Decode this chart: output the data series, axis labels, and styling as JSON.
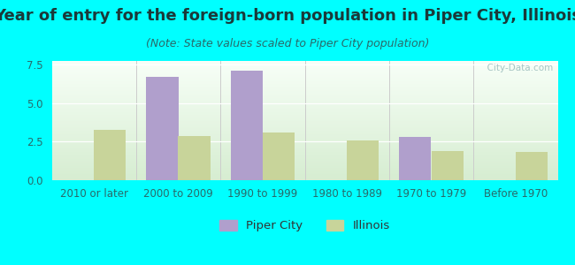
{
  "title": "Year of entry for the foreign-born population in Piper City, Illinois",
  "subtitle": "(Note: State values scaled to Piper City population)",
  "categories": [
    "2010 or later",
    "2000 to 2009",
    "1990 to 1999",
    "1980 to 1989",
    "1970 to 1979",
    "Before 1970"
  ],
  "piper_city_values": [
    0,
    6.7,
    7.1,
    0,
    2.8,
    0
  ],
  "illinois_values": [
    3.3,
    2.85,
    3.1,
    2.6,
    1.9,
    1.85
  ],
  "piper_city_color": "#b09fcc",
  "illinois_color": "#c8d49a",
  "background_outer": "#00ffff",
  "ylim": [
    0,
    7.75
  ],
  "yticks": [
    0,
    2.5,
    5,
    7.5
  ],
  "bar_width": 0.38,
  "title_fontsize": 13,
  "subtitle_fontsize": 9,
  "tick_fontsize": 8.5,
  "legend_fontsize": 9.5,
  "watermark": "  City-Data.com"
}
